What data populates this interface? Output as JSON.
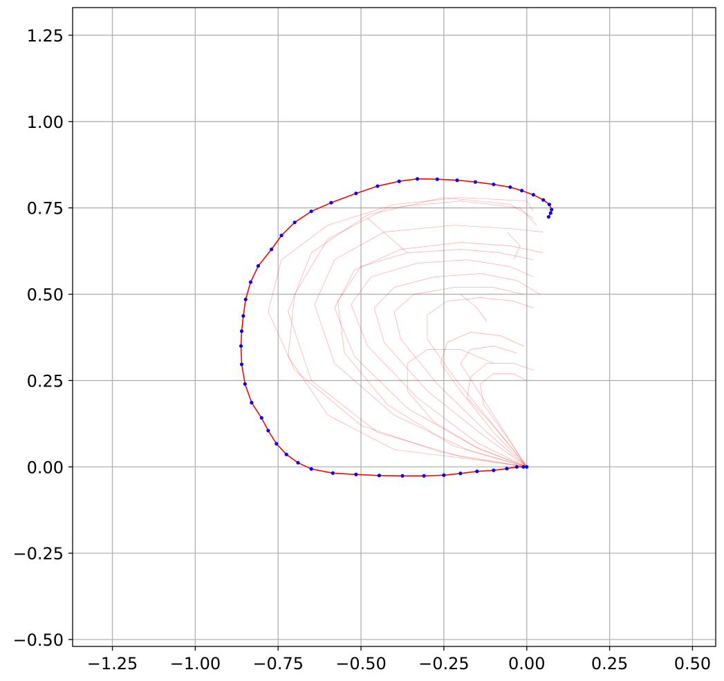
{
  "chart_data": {
    "type": "line",
    "title": "",
    "xlabel": "",
    "ylabel": "",
    "xlim": [
      -1.37,
      0.57
    ],
    "ylim": [
      -0.52,
      1.33
    ],
    "grid": true,
    "x_ticks": [
      {
        "value": -1.25,
        "label": "−1.25"
      },
      {
        "value": -1.0,
        "label": "−1.00"
      },
      {
        "value": -0.75,
        "label": "−0.75"
      },
      {
        "value": -0.5,
        "label": "−0.50"
      },
      {
        "value": -0.25,
        "label": "−0.25"
      },
      {
        "value": 0.0,
        "label": "0.00"
      },
      {
        "value": 0.25,
        "label": "0.25"
      },
      {
        "value": 0.5,
        "label": "0.50"
      }
    ],
    "y_ticks": [
      {
        "value": -0.5,
        "label": "−0.50"
      },
      {
        "value": -0.25,
        "label": "−0.25"
      },
      {
        "value": 0.0,
        "label": "0.00"
      },
      {
        "value": 0.25,
        "label": "0.25"
      },
      {
        "value": 0.5,
        "label": "0.50"
      },
      {
        "value": 0.75,
        "label": "0.75"
      },
      {
        "value": 1.0,
        "label": "1.00"
      },
      {
        "value": 1.25,
        "label": "1.25"
      }
    ],
    "colors": {
      "main": "#ff0000",
      "faint": "#ff0000",
      "markers": "#0000ff",
      "grid": "#b0b0b0",
      "axes": "#000000"
    },
    "series": [
      {
        "role": "main-path",
        "style": "line-with-markers",
        "points": [
          [
            0.0,
            0.0
          ],
          [
            -0.01,
            0.0
          ],
          [
            -0.03,
            0.0
          ],
          [
            -0.06,
            -0.005
          ],
          [
            -0.1,
            -0.01
          ],
          [
            -0.15,
            -0.013
          ],
          [
            -0.2,
            -0.019
          ],
          [
            -0.25,
            -0.024
          ],
          [
            -0.31,
            -0.026
          ],
          [
            -0.375,
            -0.026
          ],
          [
            -0.445,
            -0.025
          ],
          [
            -0.515,
            -0.022
          ],
          [
            -0.585,
            -0.018
          ],
          [
            -0.65,
            -0.006
          ],
          [
            -0.69,
            0.012
          ],
          [
            -0.725,
            0.036
          ],
          [
            -0.755,
            0.067
          ],
          [
            -0.78,
            0.105
          ],
          [
            -0.8,
            0.142
          ],
          [
            -0.83,
            0.186
          ],
          [
            -0.85,
            0.24
          ],
          [
            -0.86,
            0.297
          ],
          [
            -0.862,
            0.35
          ],
          [
            -0.86,
            0.393
          ],
          [
            -0.855,
            0.437
          ],
          [
            -0.848,
            0.485
          ],
          [
            -0.833,
            0.535
          ],
          [
            -0.81,
            0.582
          ],
          [
            -0.77,
            0.63
          ],
          [
            -0.74,
            0.67
          ],
          [
            -0.7,
            0.708
          ],
          [
            -0.65,
            0.74
          ],
          [
            -0.59,
            0.765
          ],
          [
            -0.515,
            0.792
          ],
          [
            -0.45,
            0.813
          ],
          [
            -0.385,
            0.827
          ],
          [
            -0.33,
            0.834
          ],
          [
            -0.27,
            0.833
          ],
          [
            -0.21,
            0.83
          ],
          [
            -0.155,
            0.825
          ],
          [
            -0.1,
            0.818
          ],
          [
            -0.05,
            0.81
          ],
          [
            -0.015,
            0.8
          ],
          [
            0.02,
            0.788
          ],
          [
            0.05,
            0.773
          ],
          [
            0.068,
            0.76
          ],
          [
            0.075,
            0.745
          ],
          [
            0.072,
            0.735
          ],
          [
            0.066,
            0.724
          ]
        ]
      },
      {
        "role": "faint-path",
        "points": [
          [
            0,
            0
          ],
          [
            -0.15,
            0.02
          ],
          [
            -0.4,
            0.05
          ],
          [
            -0.6,
            0.15
          ],
          [
            -0.72,
            0.32
          ],
          [
            -0.7,
            0.5
          ],
          [
            -0.6,
            0.66
          ],
          [
            -0.42,
            0.75
          ],
          [
            -0.2,
            0.77
          ],
          [
            -0.02,
            0.75
          ],
          [
            0.03,
            0.7
          ]
        ]
      },
      {
        "role": "faint-path",
        "points": [
          [
            0,
            0
          ],
          [
            -0.2,
            0.03
          ],
          [
            -0.45,
            0.1
          ],
          [
            -0.65,
            0.25
          ],
          [
            -0.72,
            0.45
          ],
          [
            -0.65,
            0.62
          ],
          [
            -0.48,
            0.73
          ],
          [
            -0.25,
            0.78
          ],
          [
            -0.05,
            0.76
          ],
          [
            0.02,
            0.72
          ]
        ]
      },
      {
        "role": "faint-path",
        "points": [
          [
            0,
            0
          ],
          [
            -0.18,
            0.05
          ],
          [
            -0.4,
            0.15
          ],
          [
            -0.58,
            0.3
          ],
          [
            -0.64,
            0.47
          ],
          [
            -0.58,
            0.6
          ],
          [
            -0.43,
            0.68
          ],
          [
            -0.22,
            0.7
          ],
          [
            -0.05,
            0.69
          ],
          [
            0.05,
            0.68
          ]
        ]
      },
      {
        "role": "faint-path",
        "points": [
          [
            0,
            0
          ],
          [
            -0.16,
            0.06
          ],
          [
            -0.36,
            0.17
          ],
          [
            -0.52,
            0.32
          ],
          [
            -0.58,
            0.46
          ],
          [
            -0.52,
            0.57
          ],
          [
            -0.38,
            0.63
          ],
          [
            -0.2,
            0.65
          ],
          [
            -0.05,
            0.64
          ],
          [
            0.05,
            0.62
          ]
        ]
      },
      {
        "role": "faint-path",
        "points": [
          [
            0,
            0
          ],
          [
            -0.15,
            0.07
          ],
          [
            -0.33,
            0.2
          ],
          [
            -0.48,
            0.35
          ],
          [
            -0.53,
            0.47
          ],
          [
            -0.47,
            0.55
          ],
          [
            -0.33,
            0.59
          ],
          [
            -0.18,
            0.6
          ],
          [
            -0.05,
            0.58
          ],
          [
            0.02,
            0.55
          ]
        ]
      },
      {
        "role": "faint-path",
        "points": [
          [
            0,
            0
          ],
          [
            -0.13,
            0.09
          ],
          [
            -0.3,
            0.22
          ],
          [
            -0.43,
            0.36
          ],
          [
            -0.46,
            0.46
          ],
          [
            -0.4,
            0.52
          ],
          [
            -0.28,
            0.55
          ],
          [
            -0.14,
            0.56
          ],
          [
            -0.03,
            0.54
          ],
          [
            0.04,
            0.5
          ]
        ]
      },
      {
        "role": "faint-path",
        "points": [
          [
            0,
            0
          ],
          [
            -0.12,
            0.1
          ],
          [
            -0.27,
            0.24
          ],
          [
            -0.38,
            0.37
          ],
          [
            -0.4,
            0.45
          ],
          [
            -0.34,
            0.5
          ],
          [
            -0.22,
            0.52
          ],
          [
            -0.1,
            0.52
          ],
          [
            -0.01,
            0.5
          ]
        ]
      },
      {
        "role": "faint-path",
        "points": [
          [
            0,
            0
          ],
          [
            -0.1,
            0.12
          ],
          [
            -0.22,
            0.26
          ],
          [
            -0.3,
            0.37
          ],
          [
            -0.3,
            0.44
          ],
          [
            -0.24,
            0.48
          ],
          [
            -0.14,
            0.49
          ],
          [
            -0.04,
            0.48
          ],
          [
            0.02,
            0.46
          ]
        ]
      },
      {
        "role": "faint-path",
        "points": [
          [
            0,
            0
          ],
          [
            -0.1,
            0.1
          ],
          [
            -0.2,
            0.22
          ],
          [
            -0.26,
            0.3
          ],
          [
            -0.24,
            0.36
          ],
          [
            -0.17,
            0.39
          ],
          [
            -0.08,
            0.38
          ],
          [
            -0.01,
            0.35
          ]
        ]
      },
      {
        "role": "faint-path",
        "points": [
          [
            0,
            0
          ],
          [
            -0.08,
            0.12
          ],
          [
            -0.16,
            0.24
          ],
          [
            -0.2,
            0.3
          ],
          [
            -0.17,
            0.34
          ],
          [
            -0.1,
            0.35
          ],
          [
            -0.03,
            0.33
          ]
        ]
      },
      {
        "role": "faint-path",
        "points": [
          [
            0,
            0
          ],
          [
            -0.07,
            0.1
          ],
          [
            -0.13,
            0.18
          ],
          [
            -0.14,
            0.24
          ],
          [
            -0.1,
            0.27
          ],
          [
            -0.04,
            0.27
          ],
          [
            0.0,
            0.25
          ]
        ]
      },
      {
        "role": "faint-path",
        "points": [
          [
            0,
            0
          ],
          [
            -0.25,
            0.04
          ],
          [
            -0.5,
            0.12
          ],
          [
            -0.7,
            0.28
          ],
          [
            -0.78,
            0.45
          ],
          [
            -0.74,
            0.6
          ],
          [
            -0.6,
            0.7
          ],
          [
            -0.4,
            0.76
          ],
          [
            -0.2,
            0.78
          ],
          [
            0.0,
            0.77
          ],
          [
            0.02,
            0.74
          ]
        ]
      },
      {
        "role": "faint-path",
        "points": [
          [
            0,
            0
          ],
          [
            -0.22,
            0.06
          ],
          [
            -0.42,
            0.18
          ],
          [
            -0.55,
            0.33
          ],
          [
            -0.57,
            0.48
          ],
          [
            -0.5,
            0.58
          ],
          [
            -0.36,
            0.62
          ],
          [
            -0.2,
            0.63
          ],
          [
            -0.08,
            0.62
          ],
          [
            0.02,
            0.6
          ]
        ]
      },
      {
        "role": "faint-path",
        "points": [
          [
            0,
            0
          ],
          [
            -0.14,
            0.05
          ],
          [
            -0.28,
            0.13
          ],
          [
            -0.36,
            0.22
          ],
          [
            -0.36,
            0.3
          ],
          [
            -0.3,
            0.34
          ],
          [
            -0.2,
            0.34
          ],
          [
            -0.1,
            0.3
          ]
        ]
      },
      {
        "role": "faint-path",
        "points": [
          [
            0,
            0
          ],
          [
            -0.05,
            0.06
          ],
          [
            -0.12,
            0.14
          ],
          [
            -0.18,
            0.2
          ],
          [
            -0.17,
            0.26
          ],
          [
            -0.12,
            0.3
          ],
          [
            -0.04,
            0.3
          ],
          [
            0.02,
            0.28
          ]
        ]
      },
      {
        "role": "faint-path",
        "points": [
          [
            -0.48,
            0.72
          ],
          [
            -0.42,
            0.67
          ],
          [
            -0.36,
            0.62
          ]
        ]
      },
      {
        "role": "faint-path",
        "points": [
          [
            -0.2,
            0.5
          ],
          [
            -0.15,
            0.46
          ],
          [
            -0.12,
            0.42
          ]
        ]
      },
      {
        "role": "faint-path",
        "points": [
          [
            -0.06,
            0.68
          ],
          [
            -0.02,
            0.64
          ],
          [
            -0.04,
            0.6
          ]
        ]
      }
    ]
  }
}
